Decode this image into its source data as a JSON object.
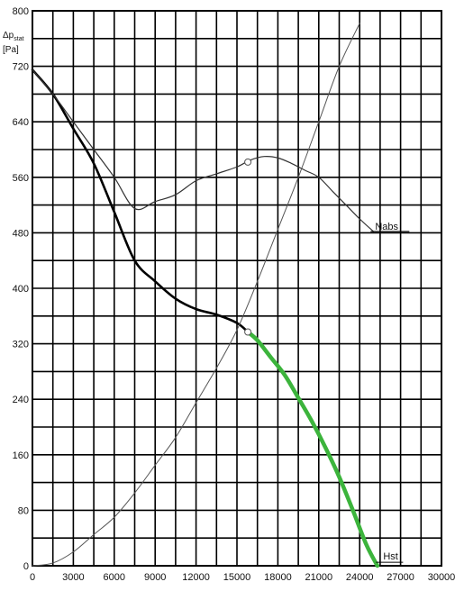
{
  "chart_data": {
    "type": "line",
    "ylabel": "Δpstat",
    "ylabel_main": "Δp",
    "ylabel_sub": "stat",
    "yunit": "[Pa]",
    "xlim": [
      0,
      30000
    ],
    "ylim": [
      0,
      800
    ],
    "grid": true,
    "x_ticks": [
      0,
      3000,
      6000,
      9000,
      12000,
      15000,
      18000,
      21000,
      24000,
      27000,
      30000
    ],
    "x_tick_labels": [
      "0",
      "3000",
      "6000",
      "9000",
      "12000",
      "15000",
      "18000",
      "21000",
      "24000",
      "27000",
      "30000"
    ],
    "y_ticks": [
      0,
      80,
      160,
      240,
      320,
      400,
      480,
      560,
      640,
      720,
      800
    ],
    "y_tick_labels": [
      "0",
      "80",
      "160",
      "240",
      "320",
      "400",
      "480",
      "560",
      "640",
      "720",
      "800"
    ],
    "series": [
      {
        "name": "Hst",
        "color": "#000000",
        "x": [
          0,
          1500,
          3000,
          4500,
          6000,
          7500,
          9000,
          10500,
          12000,
          13500,
          15000,
          15800
        ],
        "y": [
          715,
          680,
          630,
          580,
          510,
          440,
          410,
          385,
          370,
          362,
          350,
          337
        ]
      },
      {
        "name": "Hst",
        "color": "#3cb43c",
        "x": [
          15800,
          16500,
          17500,
          18500,
          19500,
          20500,
          21500,
          22500,
          23500,
          24500,
          25300
        ],
        "y": [
          337,
          325,
          300,
          275,
          242,
          208,
          170,
          128,
          80,
          30,
          0
        ]
      },
      {
        "name": "Nabs",
        "color": "#333333",
        "x": [
          0,
          1500,
          3000,
          4500,
          6000,
          7500,
          9000,
          10500,
          12000,
          13500,
          15000,
          16000,
          17000,
          18000,
          19000,
          20000,
          21000,
          22000,
          23000,
          24000,
          25000
        ],
        "y": [
          715,
          680,
          640,
          600,
          560,
          515,
          525,
          535,
          555,
          565,
          575,
          585,
          590,
          588,
          580,
          570,
          560,
          540,
          520,
          500,
          482
        ]
      },
      {
        "name": "",
        "color": "#555555",
        "x": [
          0,
          1500,
          3000,
          4500,
          6000,
          7500,
          9000,
          10500,
          12000,
          13500,
          15000,
          16500,
          18000,
          19500,
          21000,
          22500,
          24000
        ],
        "y": [
          0,
          4,
          20,
          45,
          70,
          105,
          145,
          185,
          235,
          285,
          340,
          410,
          485,
          560,
          640,
          720,
          782
        ]
      }
    ],
    "markers": [
      {
        "x": 15800,
        "y": 337
      },
      {
        "x": 15800,
        "y": 582
      }
    ],
    "annotations": [
      {
        "text": "Nabs",
        "x": 25000,
        "y": 482
      },
      {
        "text": "Hst",
        "x": 25200,
        "y": 5
      }
    ]
  }
}
